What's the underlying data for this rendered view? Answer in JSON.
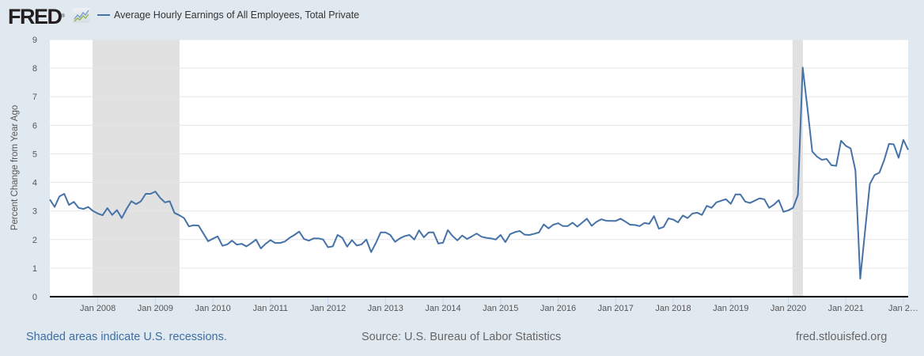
{
  "header": {
    "logo_text": "FRED",
    "logo_registered": "®",
    "series_title": "Average Hourly Earnings of All Employees, Total Private"
  },
  "footer": {
    "recession_note": "Shaded areas indicate U.S. recessions.",
    "source": "Source: U.S. Bureau of Labor Statistics",
    "site": "fred.stlouisfed.org"
  },
  "colors": {
    "series": "#4572a7",
    "recession": "#e1e1e1",
    "plot_bg": "#ffffff",
    "page_bg": "#e1e9f0",
    "grid": "#e6e6e6",
    "axis": "#000000"
  },
  "chart_data": {
    "type": "line",
    "title": "Average Hourly Earnings of All Employees, Total Private",
    "xlabel": "",
    "ylabel": "Percent Change from Year Ago",
    "ylim": [
      0,
      9
    ],
    "yticks": [
      "0",
      "1",
      "2",
      "3",
      "4",
      "5",
      "6",
      "7",
      "8",
      "9"
    ],
    "grid": true,
    "legend_position": "top-left",
    "x_start": "2007-03",
    "x_end": "2022-02",
    "frequency": "monthly",
    "xticks": [
      {
        "date": "2008-01",
        "label": "Jan 2008"
      },
      {
        "date": "2009-01",
        "label": "Jan 2009"
      },
      {
        "date": "2010-01",
        "label": "Jan 2010"
      },
      {
        "date": "2011-01",
        "label": "Jan 2011"
      },
      {
        "date": "2012-01",
        "label": "Jan 2012"
      },
      {
        "date": "2013-01",
        "label": "Jan 2013"
      },
      {
        "date": "2014-01",
        "label": "Jan 2014"
      },
      {
        "date": "2015-01",
        "label": "Jan 2015"
      },
      {
        "date": "2016-01",
        "label": "Jan 2016"
      },
      {
        "date": "2017-01",
        "label": "Jan 2017"
      },
      {
        "date": "2018-01",
        "label": "Jan 2018"
      },
      {
        "date": "2019-01",
        "label": "Jan 2019"
      },
      {
        "date": "2020-01",
        "label": "Jan 2020"
      },
      {
        "date": "2021-01",
        "label": "Jan 2021"
      },
      {
        "date": "2022-01",
        "label": "Jan 2…"
      }
    ],
    "recessions": [
      {
        "start": "2007-12",
        "end": "2009-06"
      },
      {
        "start": "2020-02",
        "end": "2020-04"
      }
    ],
    "series": [
      {
        "name": "Average Hourly Earnings of All Employees, Total Private",
        "values": [
          3.4,
          3.14,
          3.51,
          3.6,
          3.21,
          3.32,
          3.11,
          3.07,
          3.14,
          3.0,
          2.91,
          2.85,
          3.1,
          2.86,
          3.03,
          2.75,
          3.07,
          3.34,
          3.24,
          3.34,
          3.6,
          3.6,
          3.68,
          3.46,
          3.3,
          3.34,
          2.93,
          2.85,
          2.75,
          2.46,
          2.5,
          2.49,
          2.22,
          1.94,
          2.03,
          2.11,
          1.78,
          1.83,
          1.96,
          1.82,
          1.85,
          1.76,
          1.87,
          2.0,
          1.69,
          1.85,
          1.98,
          1.88,
          1.88,
          1.93,
          2.06,
          2.16,
          2.28,
          2.02,
          1.96,
          2.04,
          2.04,
          2.0,
          1.73,
          1.76,
          2.16,
          2.06,
          1.75,
          1.98,
          1.79,
          1.83,
          2.0,
          1.56,
          1.88,
          2.25,
          2.25,
          2.16,
          1.92,
          2.04,
          2.12,
          2.16,
          2.0,
          2.32,
          2.08,
          2.25,
          2.25,
          1.86,
          1.89,
          2.33,
          2.12,
          1.97,
          2.14,
          2.02,
          2.11,
          2.21,
          2.1,
          2.06,
          2.04,
          2.0,
          2.16,
          1.91,
          2.19,
          2.26,
          2.3,
          2.17,
          2.16,
          2.2,
          2.25,
          2.53,
          2.39,
          2.52,
          2.57,
          2.47,
          2.47,
          2.59,
          2.45,
          2.59,
          2.73,
          2.48,
          2.62,
          2.71,
          2.66,
          2.65,
          2.65,
          2.73,
          2.63,
          2.52,
          2.51,
          2.47,
          2.58,
          2.55,
          2.82,
          2.38,
          2.44,
          2.74,
          2.7,
          2.6,
          2.84,
          2.75,
          2.91,
          2.94,
          2.86,
          3.18,
          3.11,
          3.3,
          3.36,
          3.41,
          3.25,
          3.58,
          3.58,
          3.33,
          3.28,
          3.36,
          3.44,
          3.41,
          3.11,
          3.22,
          3.38,
          2.97,
          3.02,
          3.11,
          3.56,
          8.02,
          6.59,
          5.08,
          4.9,
          4.79,
          4.82,
          4.6,
          4.58,
          5.46,
          5.28,
          5.19,
          4.42,
          0.63,
          2.29,
          3.94,
          4.26,
          4.34,
          4.78,
          5.35,
          5.33,
          4.86,
          5.49,
          5.14
        ]
      }
    ]
  }
}
